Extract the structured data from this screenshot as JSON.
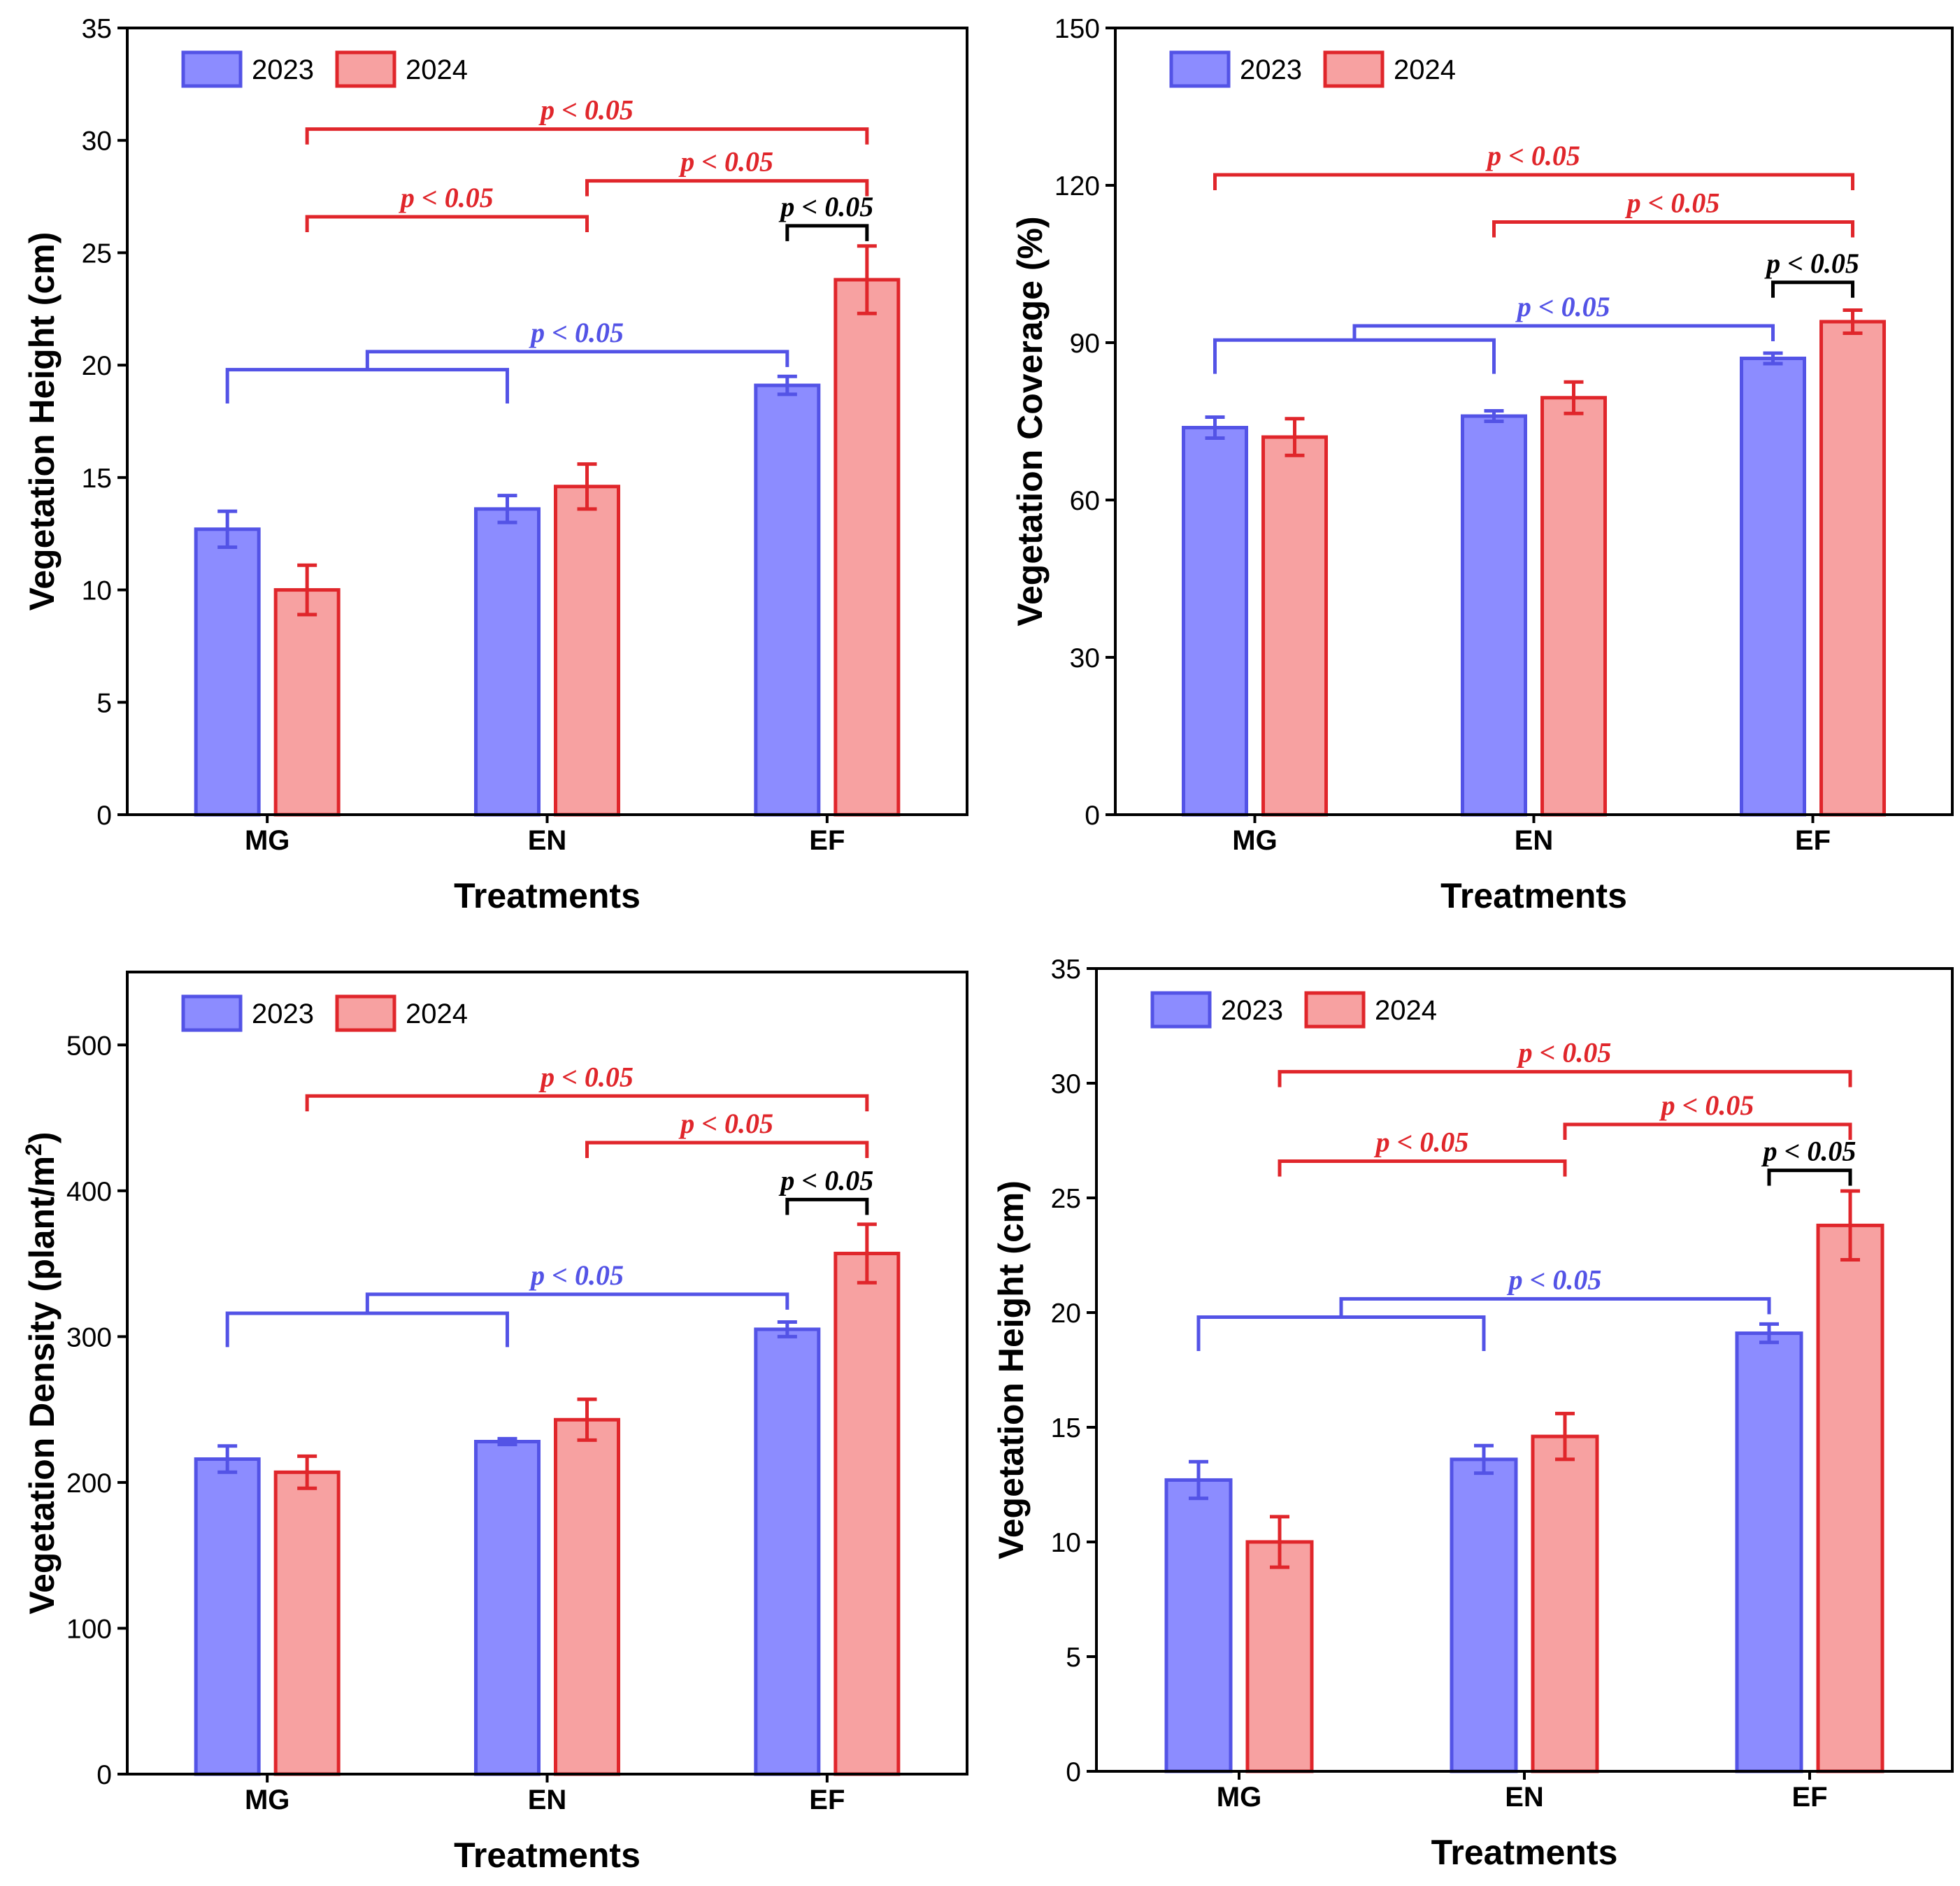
{
  "colors": {
    "blue_fill": "#8c8cff",
    "blue_edge": "#5353e6",
    "red_fill": "#f7a1a1",
    "red_edge": "#e0262b",
    "black": "#000000"
  },
  "chart_data": [
    {
      "type": "bar",
      "title": "",
      "xlabel": "Treatments",
      "ylabel": "Vegetation Height (cm)",
      "ylim": [
        0,
        35
      ],
      "yticks": [
        0,
        5,
        10,
        15,
        20,
        25,
        30,
        35
      ],
      "categories": [
        "MG",
        "EN",
        "EF"
      ],
      "legend": [
        "2023",
        "2024"
      ],
      "series": [
        {
          "name": "2023",
          "values": [
            12.7,
            13.6,
            19.1
          ],
          "errors": [
            0.8,
            0.6,
            0.4
          ]
        },
        {
          "name": "2024",
          "values": [
            10.0,
            14.6,
            23.8
          ],
          "errors": [
            1.1,
            1.0,
            1.5
          ]
        }
      ],
      "sig": [
        {
          "label": "p < 0.05",
          "color": "red",
          "kind": "pair",
          "from": [
            0,
            1
          ],
          "to": [
            2,
            1
          ],
          "level": 30.5
        },
        {
          "label": "p < 0.05",
          "color": "red",
          "kind": "pair",
          "from": [
            1,
            1
          ],
          "to": [
            2,
            1
          ],
          "level": 28.2
        },
        {
          "label": "p < 0.05",
          "color": "red",
          "kind": "pair",
          "from": [
            0,
            1
          ],
          "to": [
            1,
            1
          ],
          "level": 26.6
        },
        {
          "label": "p < 0.05",
          "color": "black",
          "kind": "pair",
          "from": [
            2,
            0
          ],
          "to": [
            2,
            1
          ],
          "level": 26.2
        },
        {
          "label": "p < 0.05",
          "color": "blue",
          "kind": "group",
          "from": [
            0,
            0
          ],
          "to": [
            1,
            0
          ],
          "target": [
            2,
            0
          ],
          "level": 19.8,
          "level2": 20.6
        }
      ]
    },
    {
      "type": "bar",
      "title": "",
      "xlabel": "Treatments",
      "ylabel": "Vegetation  Coverage (%)",
      "ylim": [
        0,
        150
      ],
      "yticks": [
        0,
        30,
        60,
        90,
        120,
        150
      ],
      "categories": [
        "MG",
        "EN",
        "EF"
      ],
      "legend": [
        "2023",
        "2024"
      ],
      "series": [
        {
          "name": "2023",
          "values": [
            73.8,
            76.0,
            87.0
          ],
          "errors": [
            2.0,
            1.0,
            1.0
          ]
        },
        {
          "name": "2024",
          "values": [
            72.0,
            79.5,
            94.0
          ],
          "errors": [
            3.5,
            3.0,
            2.2
          ]
        }
      ],
      "sig": [
        {
          "label": "p < 0.05",
          "color": "red",
          "kind": "pair",
          "from": [
            0,
            0
          ],
          "to": [
            2,
            1
          ],
          "level": 122
        },
        {
          "label": "p < 0.05",
          "color": "red",
          "kind": "pair",
          "from": [
            1,
            0
          ],
          "to": [
            2,
            1
          ],
          "level": 113
        },
        {
          "label": "p < 0.05",
          "color": "black",
          "kind": "pair",
          "from": [
            2,
            0
          ],
          "to": [
            2,
            1
          ],
          "level": 101.5
        },
        {
          "label": "p < 0.05",
          "color": "blue",
          "kind": "group",
          "from": [
            0,
            0
          ],
          "to": [
            1,
            0
          ],
          "target": [
            2,
            0
          ],
          "level": 90.5,
          "level2": 93.2
        }
      ]
    },
    {
      "type": "bar",
      "title": "",
      "xlabel": "Treatments",
      "ylabel": "Vegetation  Density (plant/m",
      "ylabel_sup": "2",
      "ylabel_end": ")",
      "ylim": [
        0,
        550
      ],
      "yticks": [
        0,
        100,
        200,
        300,
        400,
        500
      ],
      "categories": [
        "MG",
        "EN",
        "EF"
      ],
      "legend": [
        "2023",
        "2024"
      ],
      "series": [
        {
          "name": "2023",
          "values": [
            216,
            228,
            305
          ],
          "errors": [
            9,
            2,
            5
          ]
        },
        {
          "name": "2024",
          "values": [
            207,
            243,
            357
          ],
          "errors": [
            11,
            14,
            20
          ]
        }
      ],
      "sig": [
        {
          "label": "p < 0.05",
          "color": "red",
          "kind": "pair",
          "from": [
            0,
            1
          ],
          "to": [
            2,
            1
          ],
          "level": 465
        },
        {
          "label": "p < 0.05",
          "color": "red",
          "kind": "pair",
          "from": [
            1,
            1
          ],
          "to": [
            2,
            1
          ],
          "level": 433
        },
        {
          "label": "p < 0.05",
          "color": "black",
          "kind": "pair",
          "from": [
            2,
            0
          ],
          "to": [
            2,
            1
          ],
          "level": 394
        },
        {
          "label": "p < 0.05",
          "color": "blue",
          "kind": "group",
          "from": [
            0,
            0
          ],
          "to": [
            1,
            0
          ],
          "target": [
            2,
            0
          ],
          "level": 316,
          "level2": 329
        }
      ]
    },
    {
      "type": "bar",
      "title": "",
      "xlabel": "Treatments",
      "ylabel": "Vegetation Height (cm)",
      "ylim": [
        0,
        35
      ],
      "yticks": [
        0,
        5,
        10,
        15,
        20,
        25,
        30,
        35
      ],
      "categories": [
        "MG",
        "EN",
        "EF"
      ],
      "legend": [
        "2023",
        "2024"
      ],
      "series": [
        {
          "name": "2023",
          "values": [
            12.7,
            13.6,
            19.1
          ],
          "errors": [
            0.8,
            0.6,
            0.4
          ]
        },
        {
          "name": "2024",
          "values": [
            10.0,
            14.6,
            23.8
          ],
          "errors": [
            1.1,
            1.0,
            1.5
          ]
        }
      ],
      "sig": [
        {
          "label": "p < 0.05",
          "color": "red",
          "kind": "pair",
          "from": [
            0,
            1
          ],
          "to": [
            2,
            1
          ],
          "level": 30.5
        },
        {
          "label": "p < 0.05",
          "color": "red",
          "kind": "pair",
          "from": [
            1,
            1
          ],
          "to": [
            2,
            1
          ],
          "level": 28.2
        },
        {
          "label": "p < 0.05",
          "color": "red",
          "kind": "pair",
          "from": [
            0,
            1
          ],
          "to": [
            1,
            1
          ],
          "level": 26.6
        },
        {
          "label": "p < 0.05",
          "color": "black",
          "kind": "pair",
          "from": [
            2,
            0
          ],
          "to": [
            2,
            1
          ],
          "level": 26.2
        },
        {
          "label": "p < 0.05",
          "color": "blue",
          "kind": "group",
          "from": [
            0,
            0
          ],
          "to": [
            1,
            0
          ],
          "target": [
            2,
            0
          ],
          "level": 19.8,
          "level2": 20.6
        }
      ]
    }
  ]
}
